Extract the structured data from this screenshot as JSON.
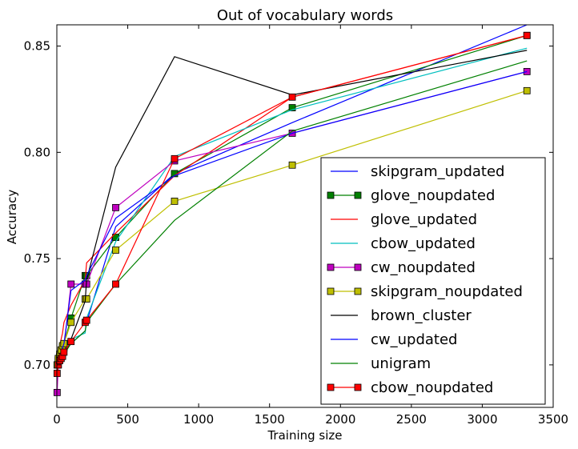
{
  "chart_data": {
    "type": "line",
    "title": "Out of vocabulary words",
    "xlabel": "Training size",
    "ylabel": "Accuracy",
    "xlim": [
      0,
      3500
    ],
    "ylim": [
      0.68,
      0.86
    ],
    "xticks": [
      0,
      500,
      1000,
      1500,
      2000,
      2500,
      3000,
      3500
    ],
    "yticks": [
      0.7,
      0.75,
      0.8,
      0.85
    ],
    "xtick_labels": [
      "0",
      "500",
      "1000",
      "1500",
      "2000",
      "2500",
      "3000",
      "3500"
    ],
    "ytick_labels": [
      "0.70",
      "0.75",
      "0.80",
      "0.85"
    ],
    "grid": false,
    "legend_position": "lower-right",
    "x": [
      2,
      10,
      20,
      30,
      40,
      50,
      100,
      200,
      210,
      415,
      830,
      1660,
      3315
    ],
    "series": [
      {
        "name": "skipgram_updated",
        "color": "#0000ff",
        "marker": "none",
        "values": [
          0.7,
          0.7,
          0.7,
          0.702,
          0.705,
          0.706,
          0.71,
          0.716,
          0.72,
          0.765,
          0.79,
          0.814,
          0.86
        ]
      },
      {
        "name": "glove_noupdated",
        "color": "#008000",
        "marker": "square",
        "values": [
          0.7,
          0.702,
          0.704,
          0.706,
          0.708,
          0.71,
          0.722,
          0.742,
          0.742,
          0.76,
          0.79,
          0.821,
          0.855
        ]
      },
      {
        "name": "glove_updated",
        "color": "#ff0000",
        "marker": "none",
        "values": [
          0.7,
          0.705,
          0.708,
          0.712,
          0.715,
          0.72,
          0.728,
          0.74,
          0.748,
          0.762,
          0.789,
          0.826,
          0.855
        ]
      },
      {
        "name": "cbow_updated",
        "color": "#00bfbf",
        "marker": "none",
        "values": [
          0.7,
          0.702,
          0.704,
          0.705,
          0.707,
          0.709,
          0.712,
          0.715,
          0.722,
          0.758,
          0.798,
          0.82,
          0.849
        ]
      },
      {
        "name": "cw_noupdated",
        "color": "#bf00bf",
        "marker": "square",
        "values": [
          0.687,
          0.7,
          0.703,
          0.705,
          0.707,
          0.708,
          0.738,
          0.738,
          0.738,
          0.774,
          0.796,
          0.809,
          0.838
        ]
      },
      {
        "name": "skipgram_noupdated",
        "color": "#bfbf00",
        "marker": "square",
        "values": [
          0.7,
          0.703,
          0.705,
          0.707,
          0.709,
          0.71,
          0.72,
          0.731,
          0.731,
          0.754,
          0.777,
          0.794,
          0.829
        ]
      },
      {
        "name": "brown_cluster",
        "color": "#000000",
        "marker": "none",
        "values": [
          0.698,
          0.699,
          0.7,
          0.701,
          0.702,
          0.704,
          0.712,
          0.73,
          0.74,
          0.793,
          0.845,
          0.827,
          0.848
        ]
      },
      {
        "name": "cw_updated",
        "color": "#0000ff",
        "marker": "none",
        "values": [
          0.7,
          0.702,
          0.704,
          0.706,
          0.708,
          0.71,
          0.735,
          0.74,
          0.742,
          0.769,
          0.789,
          0.809,
          0.838
        ]
      },
      {
        "name": "unigram",
        "color": "#008000",
        "marker": "none",
        "values": [
          0.7,
          0.701,
          0.702,
          0.703,
          0.704,
          0.705,
          0.71,
          0.716,
          0.72,
          0.738,
          0.768,
          0.81,
          0.843
        ]
      },
      {
        "name": "cbow_noupdated",
        "color": "#ff0000",
        "marker": "square",
        "values": [
          0.696,
          0.7,
          0.702,
          0.703,
          0.704,
          0.706,
          0.711,
          0.72,
          0.721,
          0.738,
          0.797,
          0.826,
          0.855
        ]
      }
    ]
  }
}
